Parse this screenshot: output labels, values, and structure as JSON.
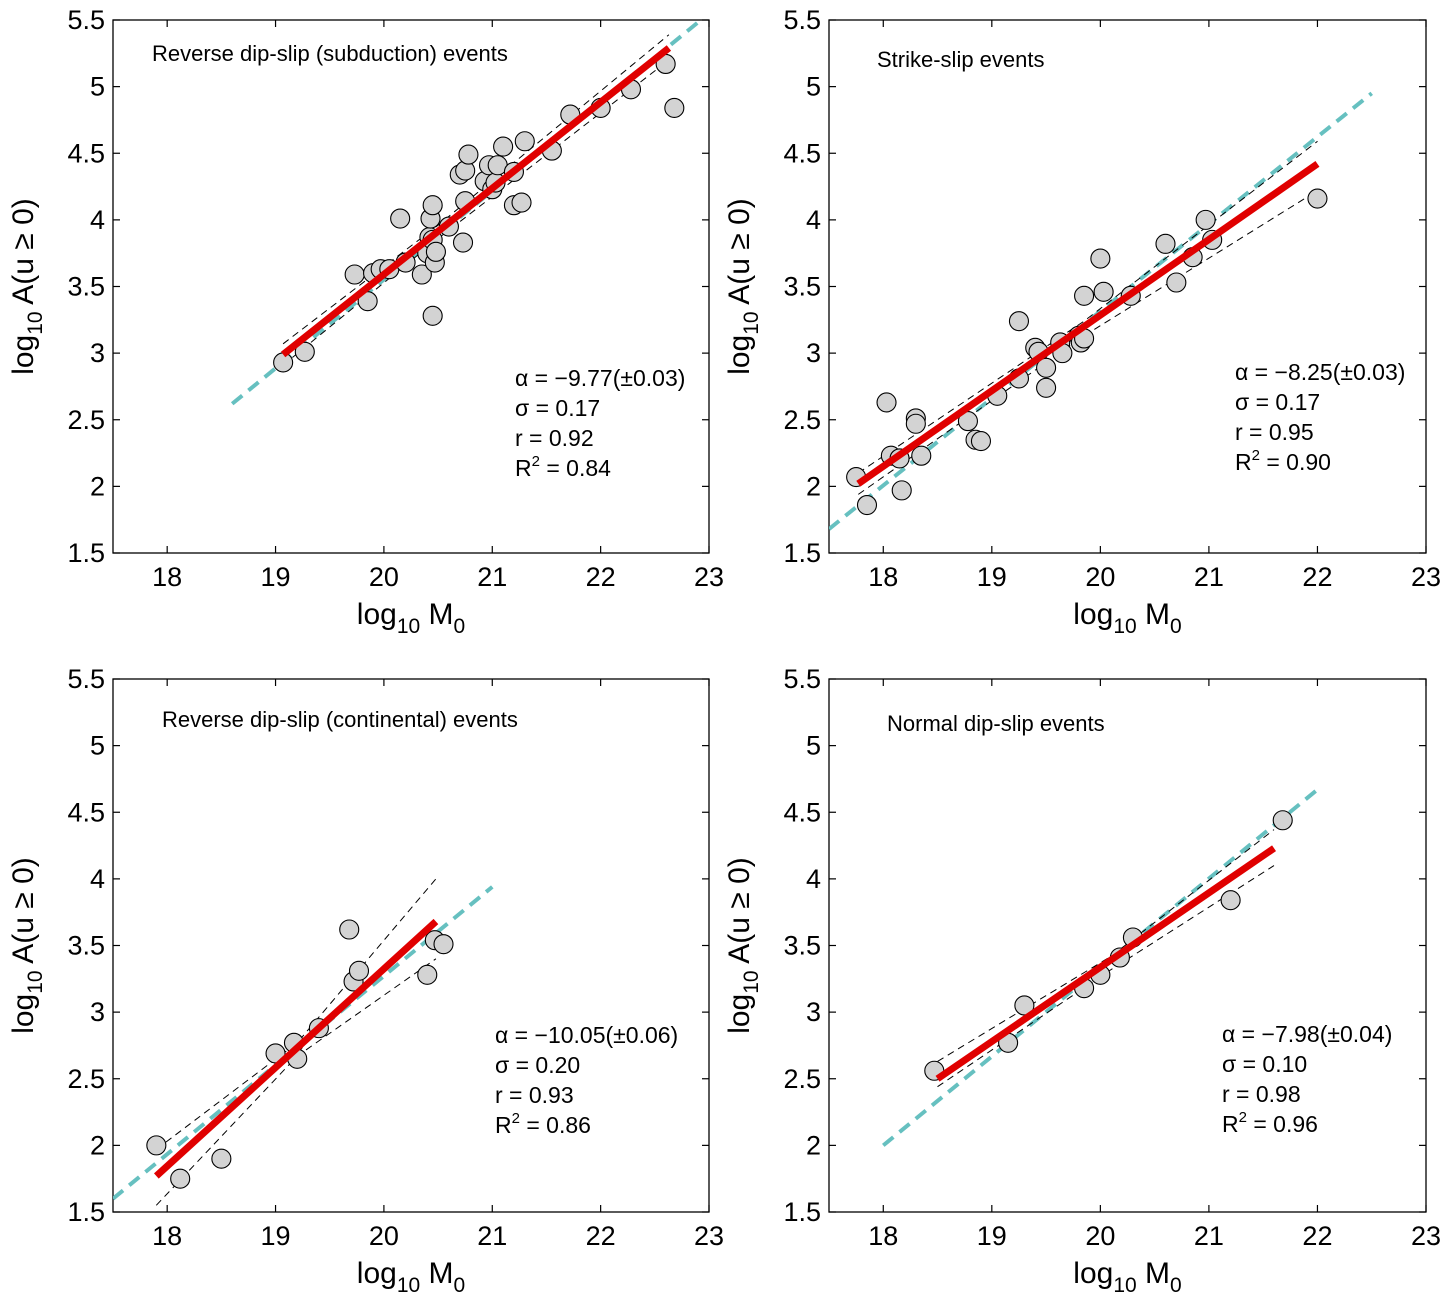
{
  "chart_data": [
    {
      "type": "scatter",
      "title": "Reverse dip-slip (subduction) events",
      "xlabel": {
        "base": "log",
        "sub": "10",
        "rest": " M",
        "sub2": "0"
      },
      "ylabel": {
        "base": "log",
        "sub": "10",
        "rest": " A(u ≥ 0)"
      },
      "xlim": [
        17.5,
        23
      ],
      "ylim": [
        1.5,
        5.5
      ],
      "xticks": [
        "18",
        "19",
        "20",
        "21",
        "22",
        "23"
      ],
      "yticks": [
        "1.5",
        "2",
        "2.5",
        "3",
        "3.5",
        "4",
        "4.5",
        "5",
        "5.5"
      ],
      "stats": {
        "alpha": "α = −9.77(±0.03)",
        "sigma": "σ = 0.17",
        "r": "r = 0.92",
        "r2_base": "R",
        "r2_sup": "2",
        "r2_value": " = 0.84"
      },
      "points": [
        [
          19.07,
          2.93
        ],
        [
          19.27,
          3.01
        ],
        [
          19.73,
          3.59
        ],
        [
          19.85,
          3.39
        ],
        [
          19.9,
          3.6
        ],
        [
          19.97,
          3.63
        ],
        [
          20.05,
          3.63
        ],
        [
          20.15,
          4.01
        ],
        [
          20.2,
          3.68
        ],
        [
          20.35,
          3.59
        ],
        [
          20.4,
          3.75
        ],
        [
          20.42,
          3.87
        ],
        [
          20.45,
          3.85
        ],
        [
          20.43,
          4.01
        ],
        [
          20.45,
          4.11
        ],
        [
          20.47,
          3.68
        ],
        [
          20.48,
          3.76
        ],
        [
          20.45,
          3.28
        ],
        [
          20.6,
          3.95
        ],
        [
          20.7,
          4.34
        ],
        [
          20.75,
          4.14
        ],
        [
          20.75,
          4.37
        ],
        [
          20.78,
          4.49
        ],
        [
          20.73,
          3.83
        ],
        [
          20.93,
          4.29
        ],
        [
          20.97,
          4.41
        ],
        [
          21.0,
          4.23
        ],
        [
          21.03,
          4.28
        ],
        [
          21.1,
          4.55
        ],
        [
          21.05,
          4.41
        ],
        [
          21.2,
          4.11
        ],
        [
          21.2,
          4.36
        ],
        [
          21.27,
          4.13
        ],
        [
          21.3,
          4.59
        ],
        [
          21.55,
          4.52
        ],
        [
          21.72,
          4.79
        ],
        [
          22.0,
          4.84
        ],
        [
          22.28,
          4.98
        ],
        [
          22.6,
          5.17
        ],
        [
          22.68,
          4.84
        ]
      ],
      "fit": [
        [
          19.07,
          2.99
        ],
        [
          22.63,
          5.29
        ]
      ],
      "confidence_upper": [
        [
          19.07,
          3.07
        ],
        [
          20.5,
          3.96
        ],
        [
          22.63,
          5.39
        ]
      ],
      "confidence_lower": [
        [
          19.07,
          2.91
        ],
        [
          20.5,
          3.86
        ],
        [
          22.63,
          5.2
        ]
      ],
      "reference": [
        [
          18.6,
          2.62
        ],
        [
          23.0,
          5.55
        ]
      ],
      "colors": {
        "points_fill": "#d3d3d3",
        "fit": "#e00000",
        "reference": "#66c0c0"
      }
    },
    {
      "type": "scatter",
      "title": "Strike-slip events",
      "xlabel": {
        "base": "log",
        "sub": "10",
        "rest": " M",
        "sub2": "0"
      },
      "ylabel": {
        "base": "log",
        "sub": "10",
        "rest": " A(u ≥ 0)"
      },
      "xlim": [
        17.5,
        23
      ],
      "ylim": [
        1.5,
        5.5
      ],
      "xticks": [
        "18",
        "19",
        "20",
        "21",
        "22",
        "23"
      ],
      "yticks": [
        "1.5",
        "2",
        "2.5",
        "3",
        "3.5",
        "4",
        "4.5",
        "5",
        "5.5"
      ],
      "stats": {
        "alpha": "α = −8.25(±0.03)",
        "sigma": "σ = 0.17",
        "r": "r = 0.95",
        "r2_base": "R",
        "r2_sup": "2",
        "r2_value": " = 0.90"
      },
      "points": [
        [
          17.75,
          2.07
        ],
        [
          17.85,
          1.86
        ],
        [
          18.03,
          2.63
        ],
        [
          18.07,
          2.23
        ],
        [
          18.15,
          2.21
        ],
        [
          18.17,
          1.97
        ],
        [
          18.3,
          2.51
        ],
        [
          18.3,
          2.47
        ],
        [
          18.35,
          2.23
        ],
        [
          18.78,
          2.49
        ],
        [
          18.85,
          2.35
        ],
        [
          18.9,
          2.34
        ],
        [
          19.05,
          2.68
        ],
        [
          19.25,
          3.24
        ],
        [
          19.25,
          2.81
        ],
        [
          19.4,
          3.04
        ],
        [
          19.43,
          3.01
        ],
        [
          19.5,
          2.89
        ],
        [
          19.5,
          2.74
        ],
        [
          19.63,
          3.08
        ],
        [
          19.65,
          3.0
        ],
        [
          19.8,
          3.13
        ],
        [
          19.82,
          3.08
        ],
        [
          19.85,
          3.43
        ],
        [
          19.85,
          3.11
        ],
        [
          20.0,
          3.71
        ],
        [
          20.03,
          3.46
        ],
        [
          20.28,
          3.43
        ],
        [
          20.6,
          3.82
        ],
        [
          20.7,
          3.53
        ],
        [
          20.85,
          3.72
        ],
        [
          20.97,
          4.0
        ],
        [
          21.03,
          3.85
        ],
        [
          22.0,
          4.16
        ]
      ],
      "fit": [
        [
          17.77,
          2.02
        ],
        [
          22.0,
          4.42
        ]
      ],
      "confidence_upper": [
        [
          17.77,
          2.1
        ],
        [
          19.85,
          3.24
        ],
        [
          22.0,
          4.59
        ]
      ],
      "confidence_lower": [
        [
          17.77,
          1.94
        ],
        [
          19.85,
          3.13
        ],
        [
          22.0,
          4.22
        ]
      ],
      "reference": [
        [
          17.5,
          1.68
        ],
        [
          22.5,
          4.95
        ]
      ],
      "colors": {
        "points_fill": "#d3d3d3",
        "fit": "#e00000",
        "reference": "#66c0c0"
      }
    },
    {
      "type": "scatter",
      "title": "Reverse dip-slip (continental) events",
      "xlabel": {
        "base": "log",
        "sub": "10",
        "rest": " M",
        "sub2": "0"
      },
      "ylabel": {
        "base": "log",
        "sub": "10",
        "rest": " A(u ≥ 0)"
      },
      "xlim": [
        17.5,
        23
      ],
      "ylim": [
        1.5,
        5.5
      ],
      "xticks": [
        "18",
        "19",
        "20",
        "21",
        "22",
        "23"
      ],
      "yticks": [
        "1.5",
        "2",
        "2.5",
        "3",
        "3.5",
        "4",
        "4.5",
        "5",
        "5.5"
      ],
      "stats": {
        "alpha": "α = −10.05(±0.06)",
        "sigma": "σ = 0.20",
        "r": "r = 0.93",
        "r2_base": "R",
        "r2_sup": "2",
        "r2_value": " = 0.86"
      },
      "points": [
        [
          17.9,
          2.0
        ],
        [
          18.12,
          1.75
        ],
        [
          18.5,
          1.9
        ],
        [
          19.0,
          2.69
        ],
        [
          19.17,
          2.77
        ],
        [
          19.2,
          2.65
        ],
        [
          19.4,
          2.88
        ],
        [
          19.68,
          3.62
        ],
        [
          19.72,
          3.23
        ],
        [
          19.77,
          3.31
        ],
        [
          20.4,
          3.28
        ],
        [
          20.47,
          3.54
        ],
        [
          20.55,
          3.51
        ]
      ],
      "fit": [
        [
          17.9,
          1.77
        ],
        [
          20.48,
          3.68
        ]
      ],
      "confidence_upper": [
        [
          17.9,
          1.97
        ],
        [
          19.2,
          2.77
        ],
        [
          20.48,
          4.0
        ]
      ],
      "confidence_lower": [
        [
          17.9,
          1.55
        ],
        [
          19.2,
          2.67
        ],
        [
          20.48,
          3.4
        ]
      ],
      "reference": [
        [
          17.5,
          1.6
        ],
        [
          21.0,
          3.94
        ]
      ],
      "colors": {
        "points_fill": "#d3d3d3",
        "fit": "#e00000",
        "reference": "#66c0c0"
      }
    },
    {
      "type": "scatter",
      "title": "Normal dip-slip events",
      "xlabel": {
        "base": "log",
        "sub": "10",
        "rest": " M",
        "sub2": "0"
      },
      "ylabel": {
        "base": "log",
        "sub": "10",
        "rest": " A(u ≥ 0)"
      },
      "xlim": [
        17.5,
        23
      ],
      "ylim": [
        1.5,
        5.5
      ],
      "xticks": [
        "18",
        "19",
        "20",
        "21",
        "22",
        "23"
      ],
      "yticks": [
        "1.5",
        "2",
        "2.5",
        "3",
        "3.5",
        "4",
        "4.5",
        "5",
        "5.5"
      ],
      "stats": {
        "alpha": "α = −7.98(±0.04)",
        "sigma": "σ = 0.10",
        "r": "r = 0.98",
        "r2_base": "R",
        "r2_sup": "2",
        "r2_value": " = 0.96"
      },
      "points": [
        [
          18.47,
          2.56
        ],
        [
          19.15,
          2.77
        ],
        [
          19.3,
          3.05
        ],
        [
          19.85,
          3.18
        ],
        [
          20.0,
          3.28
        ],
        [
          20.18,
          3.41
        ],
        [
          20.3,
          3.56
        ],
        [
          21.2,
          3.84
        ],
        [
          21.68,
          4.44
        ]
      ],
      "fit": [
        [
          18.5,
          2.5
        ],
        [
          21.6,
          4.23
        ]
      ],
      "confidence_upper": [
        [
          18.5,
          2.63
        ],
        [
          20.1,
          3.42
        ],
        [
          21.6,
          4.37
        ]
      ],
      "confidence_lower": [
        [
          18.5,
          2.44
        ],
        [
          20.1,
          3.32
        ],
        [
          21.6,
          4.1
        ]
      ],
      "reference": [
        [
          18.0,
          2.0
        ],
        [
          22.0,
          4.67
        ]
      ],
      "colors": {
        "points_fill": "#d3d3d3",
        "fit": "#e00000",
        "reference": "#66c0c0"
      }
    }
  ]
}
